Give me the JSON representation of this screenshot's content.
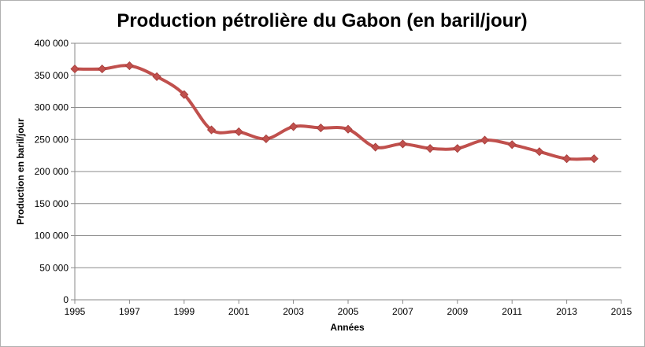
{
  "chart_data": {
    "type": "line",
    "title": "Production pétrolière du Gabon (en baril/jour)",
    "xlabel": "Années",
    "ylabel": "Production en baril/jour",
    "xlim": [
      1995,
      2015
    ],
    "ylim": [
      0,
      400000
    ],
    "x_ticks": [
      1995,
      1997,
      1999,
      2001,
      2003,
      2005,
      2007,
      2009,
      2011,
      2013,
      2015
    ],
    "y_ticks": [
      0,
      50000,
      100000,
      150000,
      200000,
      250000,
      300000,
      350000,
      400000
    ],
    "y_tick_labels": [
      "0",
      "50 000",
      "100 000",
      "150 000",
      "200 000",
      "250 000",
      "300 000",
      "350 000",
      "400 000"
    ],
    "grid": "horizontal",
    "legend": "none",
    "series": [
      {
        "color": "#c0504d",
        "marker": "diamond",
        "smooth": true,
        "x": [
          1995,
          1996,
          1997,
          1998,
          1999,
          2000,
          2001,
          2002,
          2003,
          2004,
          2005,
          2006,
          2007,
          2008,
          2009,
          2010,
          2011,
          2012,
          2013,
          2014
        ],
        "y": [
          360000,
          360000,
          365000,
          348000,
          320000,
          265000,
          262000,
          251000,
          270000,
          268000,
          266000,
          238000,
          243000,
          236000,
          236000,
          249000,
          242000,
          231000,
          220000,
          220000
        ]
      }
    ]
  }
}
